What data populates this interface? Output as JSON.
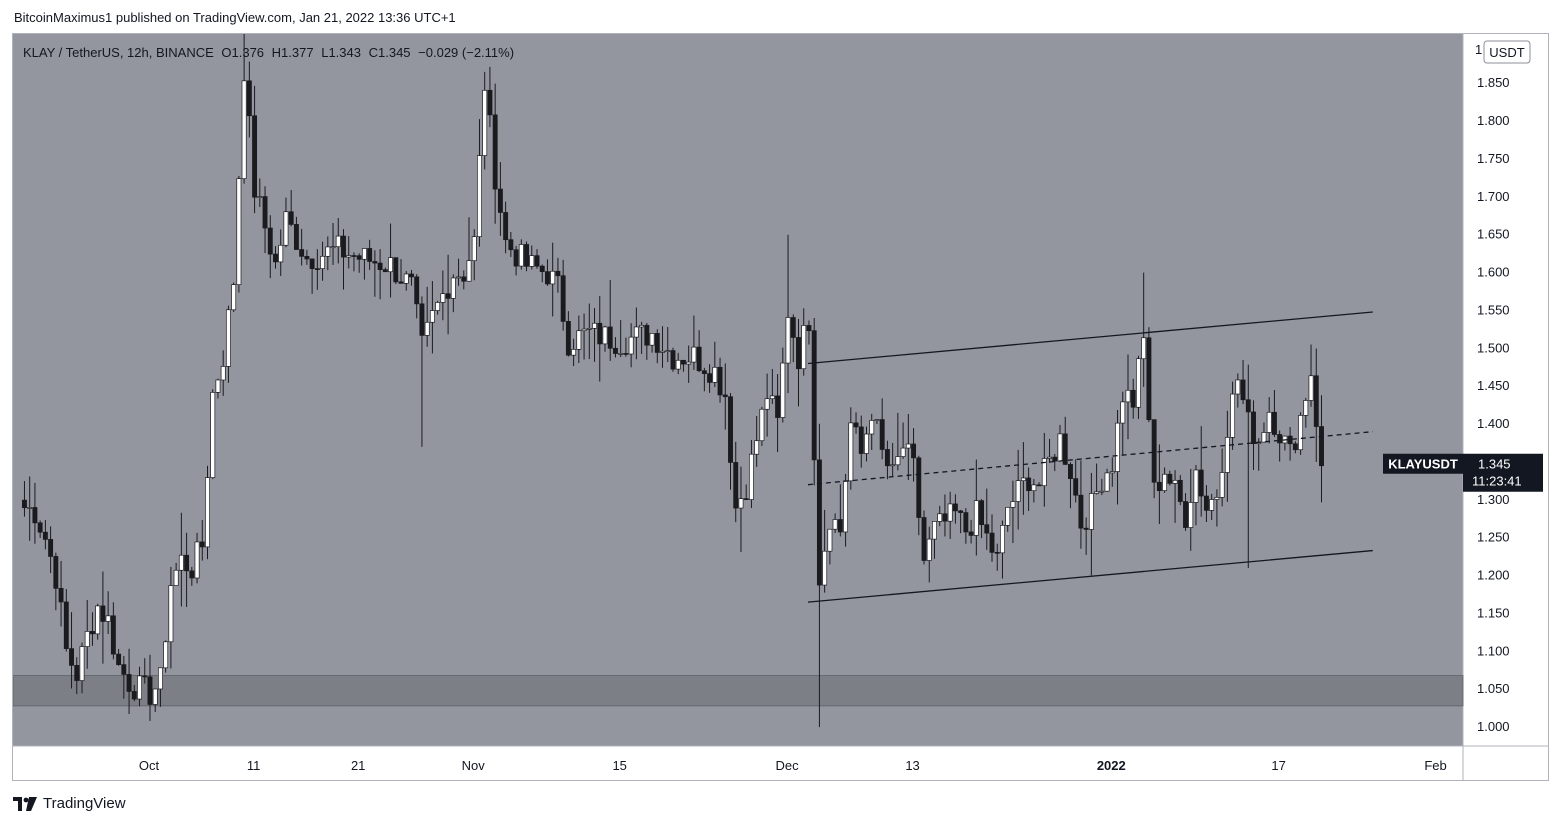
{
  "header": {
    "publisher_line": "BitcoinMaximus1 published on TradingView.com, Jan 21, 2022 13:36 UTC+1"
  },
  "legend": {
    "symbol": "KLAY / TetherUS, 12h, BINANCE",
    "open": "O1.376",
    "high": "H1.377",
    "low": "L1.343",
    "close": "C1.345",
    "change": "−0.029 (−2.11%)"
  },
  "price_axis": {
    "currency": "USDT",
    "top_label": "1"
  },
  "last_price": {
    "ticker": "KLAYUSDT",
    "price": "1.345",
    "countdown": "11:23:41"
  },
  "footer": {
    "brand": "TradingView"
  },
  "colors": {
    "background": "#94969f",
    "up": "#ffffff",
    "down": "#1a1b1f",
    "support_zone": "#7d7f86"
  },
  "chart_data": {
    "type": "candlestick",
    "interval": "12h",
    "ylim": [
      0.975,
      1.915
    ],
    "y_ticks": [
      "1.000",
      "1.050",
      "1.100",
      "1.150",
      "1.200",
      "1.250",
      "1.300",
      "1.350",
      "1.400",
      "1.450",
      "1.500",
      "1.550",
      "1.600",
      "1.650",
      "1.700",
      "1.750",
      "1.800",
      "1.850"
    ],
    "x_ticks": [
      "Oct",
      "11",
      "21",
      "Nov",
      "15",
      "Dec",
      "13",
      "2022",
      "17",
      "Feb"
    ],
    "x_tick_dates": [
      "2021-10-01",
      "2021-10-11",
      "2021-10-21",
      "2021-11-01",
      "2021-11-15",
      "2021-12-01",
      "2021-12-13",
      "2022-01-01",
      "2022-01-17",
      "2022-02-01"
    ],
    "support_zone": [
      1.028,
      1.068
    ],
    "channel": {
      "upper": {
        "from": [
          "2021-12-03",
          1.48
        ],
        "to": [
          "2022-01-26",
          1.548
        ]
      },
      "middle": {
        "from": [
          "2021-12-03",
          1.32
        ],
        "to": [
          "2022-01-26",
          1.39
        ]
      },
      "lower": {
        "from": [
          "2021-12-03",
          1.165
        ],
        "to": [
          "2022-01-26",
          1.233
        ]
      }
    },
    "anchors": [
      [
        "2021-09-19",
        1.29
      ],
      [
        "2021-09-20",
        1.285
      ],
      [
        "2021-09-21",
        1.25
      ],
      [
        "2021-09-22",
        1.2
      ],
      [
        "2021-09-23",
        1.1
      ],
      [
        "2021-09-24",
        1.07
      ],
      [
        "2021-09-25",
        1.12
      ],
      [
        "2021-09-26",
        1.16
      ],
      [
        "2021-09-27",
        1.14
      ],
      [
        "2021-09-28",
        1.08
      ],
      [
        "2021-09-29",
        1.06
      ],
      [
        "2021-09-30",
        1.05
      ],
      [
        "2021-10-01",
        1.045
      ],
      [
        "2021-10-02",
        1.06
      ],
      [
        "2021-10-03",
        1.19
      ],
      [
        "2021-10-04",
        1.22
      ],
      [
        "2021-10-05",
        1.21
      ],
      [
        "2021-10-06",
        1.24
      ],
      [
        "2021-10-07",
        1.44
      ],
      [
        "2021-10-08",
        1.49
      ],
      [
        "2021-10-09",
        1.59
      ],
      [
        "2021-10-10",
        1.87
      ],
      [
        "2021-10-11",
        1.71
      ],
      [
        "2021-10-12",
        1.66
      ],
      [
        "2021-10-13",
        1.61
      ],
      [
        "2021-10-14",
        1.67
      ],
      [
        "2021-10-16",
        1.62
      ],
      [
        "2021-10-19",
        1.63
      ],
      [
        "2021-10-21",
        1.62
      ],
      [
        "2021-10-24",
        1.61
      ],
      [
        "2021-10-26",
        1.58
      ],
      [
        "2021-10-27",
        1.5
      ],
      [
        "2021-10-28",
        1.54
      ],
      [
        "2021-10-30",
        1.6
      ],
      [
        "2021-10-31",
        1.6
      ],
      [
        "2021-11-01",
        1.64
      ],
      [
        "2021-11-02",
        1.85
      ],
      [
        "2021-11-03",
        1.73
      ],
      [
        "2021-11-04",
        1.64
      ],
      [
        "2021-11-06",
        1.61
      ],
      [
        "2021-11-08",
        1.6
      ],
      [
        "2021-11-09",
        1.58
      ],
      [
        "2021-11-10",
        1.51
      ],
      [
        "2021-11-12",
        1.52
      ],
      [
        "2021-11-15",
        1.51
      ],
      [
        "2021-11-18",
        1.52
      ],
      [
        "2021-11-20",
        1.49
      ],
      [
        "2021-11-22",
        1.49
      ],
      [
        "2021-11-24",
        1.47
      ],
      [
        "2021-11-25",
        1.44
      ],
      [
        "2021-11-26",
        1.29
      ],
      [
        "2021-11-27",
        1.32
      ],
      [
        "2021-11-28",
        1.38
      ],
      [
        "2021-11-29",
        1.44
      ],
      [
        "2021-11-30",
        1.4
      ],
      [
        "2021-12-01",
        1.55
      ],
      [
        "2021-12-02",
        1.49
      ],
      [
        "2021-12-03",
        1.54
      ],
      [
        "2021-12-04",
        1.2
      ],
      [
        "2021-12-05",
        1.28
      ],
      [
        "2021-12-06",
        1.26
      ],
      [
        "2021-12-07",
        1.4
      ],
      [
        "2021-12-08",
        1.36
      ],
      [
        "2021-12-09",
        1.42
      ],
      [
        "2021-12-10",
        1.36
      ],
      [
        "2021-12-11",
        1.33
      ],
      [
        "2021-12-12",
        1.37
      ],
      [
        "2021-12-13",
        1.34
      ],
      [
        "2021-12-14",
        1.22
      ],
      [
        "2021-12-15",
        1.26
      ],
      [
        "2021-12-16",
        1.27
      ],
      [
        "2021-12-17",
        1.28
      ],
      [
        "2021-12-18",
        1.26
      ],
      [
        "2021-12-19",
        1.28
      ],
      [
        "2021-12-20",
        1.25
      ],
      [
        "2021-12-21",
        1.22
      ],
      [
        "2021-12-22",
        1.29
      ],
      [
        "2021-12-23",
        1.31
      ],
      [
        "2021-12-24",
        1.33
      ],
      [
        "2021-12-25",
        1.32
      ],
      [
        "2021-12-26",
        1.35
      ],
      [
        "2021-12-27",
        1.38
      ],
      [
        "2021-12-28",
        1.34
      ],
      [
        "2021-12-29",
        1.27
      ],
      [
        "2021-12-30",
        1.29
      ],
      [
        "2021-12-31",
        1.33
      ],
      [
        "2022-01-01",
        1.35
      ],
      [
        "2022-01-02",
        1.44
      ],
      [
        "2022-01-03",
        1.43
      ],
      [
        "2022-01-04",
        1.51
      ],
      [
        "2022-01-05",
        1.31
      ],
      [
        "2022-01-06",
        1.34
      ],
      [
        "2022-01-07",
        1.31
      ],
      [
        "2022-01-08",
        1.28
      ],
      [
        "2022-01-09",
        1.34
      ],
      [
        "2022-01-10",
        1.29
      ],
      [
        "2022-01-11",
        1.31
      ],
      [
        "2022-01-12",
        1.4
      ],
      [
        "2022-01-13",
        1.46
      ],
      [
        "2022-01-14",
        1.4
      ],
      [
        "2022-01-15",
        1.38
      ],
      [
        "2022-01-16",
        1.42
      ],
      [
        "2022-01-17",
        1.39
      ],
      [
        "2022-01-18",
        1.36
      ],
      [
        "2022-01-19",
        1.41
      ],
      [
        "2022-01-20",
        1.47
      ],
      [
        "2022-01-21",
        1.345
      ]
    ]
  }
}
